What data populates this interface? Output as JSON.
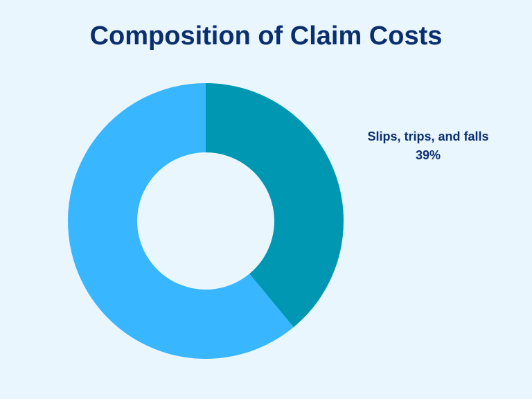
{
  "colors": {
    "background": "#E9F6FE",
    "title": "#0B2F6E"
  },
  "chart_data": {
    "type": "pie",
    "variant": "donut",
    "title": "Composition of Claim Costs",
    "slices": [
      {
        "label": "Slips, trips, and falls",
        "value": 39,
        "display": "39%",
        "color": "#0097B2",
        "labeled": true
      },
      {
        "label": "",
        "value": 61,
        "display": "",
        "color": "#38B6FF",
        "labeled": false
      }
    ],
    "start_angle_deg": 0,
    "direction": "clockwise",
    "legend": "none"
  }
}
